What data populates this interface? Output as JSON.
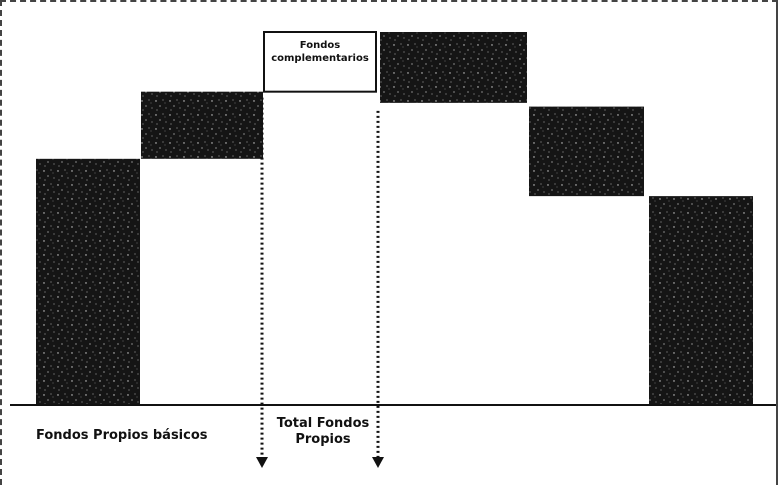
{
  "chart_data": {
    "type": "bar",
    "subtype": "waterfall",
    "bar_fill": "#151515",
    "highlight_fill": "#ffffff",
    "noise_color": "#d8d8d8",
    "bars": [
      {
        "base": 0,
        "top": 66,
        "style": "dark"
      },
      {
        "base": 66,
        "top": 84,
        "style": "dark"
      },
      {
        "base": 84,
        "top": 100,
        "style": "outline",
        "label": "Fondos complementarios"
      },
      {
        "base": 81,
        "top": 100,
        "style": "dark"
      },
      {
        "base": 56,
        "top": 80,
        "style": "dark"
      },
      {
        "base": 0,
        "top": 56,
        "style": "dark"
      }
    ],
    "ylim": [
      0,
      100
    ],
    "arrows_at_bar_edges": [
      2,
      3
    ],
    "labels": {
      "basic": "Fondos Propios básicos",
      "total": "Total Fondos Propios"
    },
    "xlabel": "",
    "ylabel": ""
  }
}
